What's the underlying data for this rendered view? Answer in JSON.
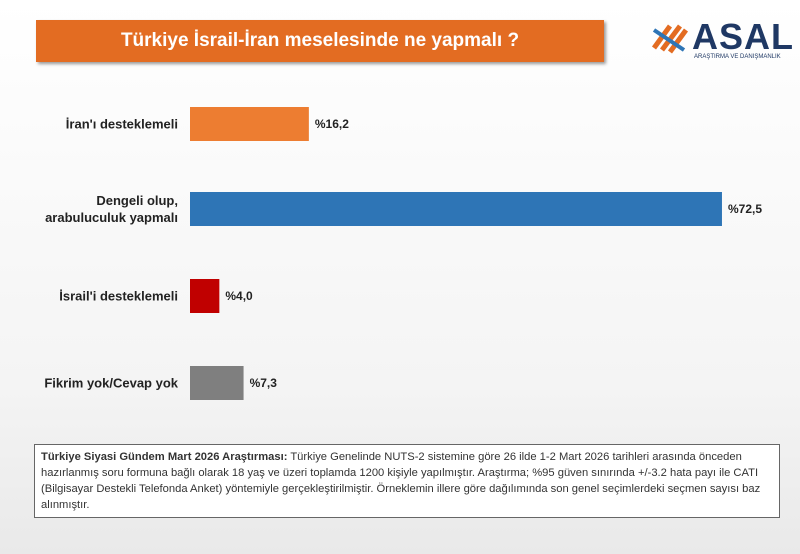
{
  "chart_data": {
    "type": "bar",
    "orientation": "horizontal",
    "title": "Türkiye İsrail-İran meselesinde ne yapmalı ?",
    "categories": [
      "İran'ı desteklemeli",
      "Dengeli olup, arabuluculuk yapmalı",
      "İsrail'i desteklemeli",
      "Fikrim yok/Cevap yok"
    ],
    "values": [
      16.2,
      72.5,
      4.0,
      7.3
    ],
    "value_labels": [
      "%16,2",
      "%72,5",
      "%4,0",
      "%7,3"
    ],
    "colors": [
      "#ed7d31",
      "#2e75b6",
      "#c00000",
      "#7f7f7f"
    ],
    "xlim": [
      0,
      80
    ]
  },
  "logo": {
    "name": "ASAL",
    "tagline": "ARAŞTIRMA VE DANIŞMANLIK"
  },
  "footnote": {
    "heading": "Türkiye Siyasi Gündem Mart 2026 Araştırması:",
    "text": "Türkiye Genelinde NUTS-2 sistemine göre 26 ilde 1-2 Mart 2026 tarihleri arasında önceden hazırlanmış soru formuna bağlı olarak 18 yaş ve üzeri toplamda 1200 kişiyle yapılmıştır. Araştırma; %95 güven sınırında +/-3.2 hata payı ile CATI (Bilgisayar Destekli Telefonda Anket) yöntemiyle gerçekleştirilmiştir. Örneklemin illere göre dağılımında son genel seçimlerdeki seçmen sayısı baz alınmıştır."
  }
}
